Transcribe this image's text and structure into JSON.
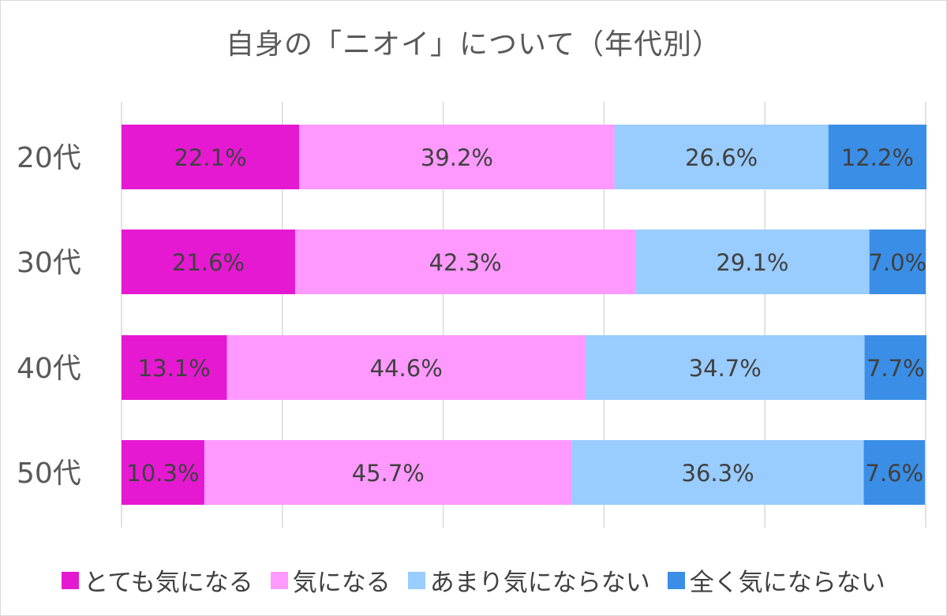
{
  "chart_data": {
    "type": "bar",
    "orientation": "horizontal",
    "stacked": "100%",
    "title": "自身の「ニオイ」について（年代別）",
    "categories": [
      "20代",
      "30代",
      "40代",
      "50代"
    ],
    "series": [
      {
        "name": "とても気になる",
        "color": "#E619D2",
        "values": [
          22.1,
          21.6,
          13.1,
          10.3
        ],
        "labels": [
          "22.1%",
          "21.6%",
          "13.1%",
          "10.3%"
        ]
      },
      {
        "name": "気になる",
        "color": "#FF99FF",
        "values": [
          39.2,
          42.3,
          44.6,
          45.7
        ],
        "labels": [
          "39.2%",
          "42.3%",
          "44.6%",
          "45.7%"
        ]
      },
      {
        "name": "あまり気にならない",
        "color": "#99CCFF",
        "values": [
          26.6,
          29.1,
          34.7,
          36.3
        ],
        "labels": [
          "26.6%",
          "29.1%",
          "34.7%",
          "36.3%"
        ]
      },
      {
        "name": "全く気にならない",
        "color": "#3A8EE6",
        "values": [
          12.2,
          7.0,
          7.7,
          7.6
        ],
        "labels": [
          "12.2%",
          "7.0%",
          "7.7%",
          "7.6%"
        ]
      }
    ],
    "xlim": [
      0,
      100
    ],
    "grid": true,
    "legend_position": "bottom"
  }
}
